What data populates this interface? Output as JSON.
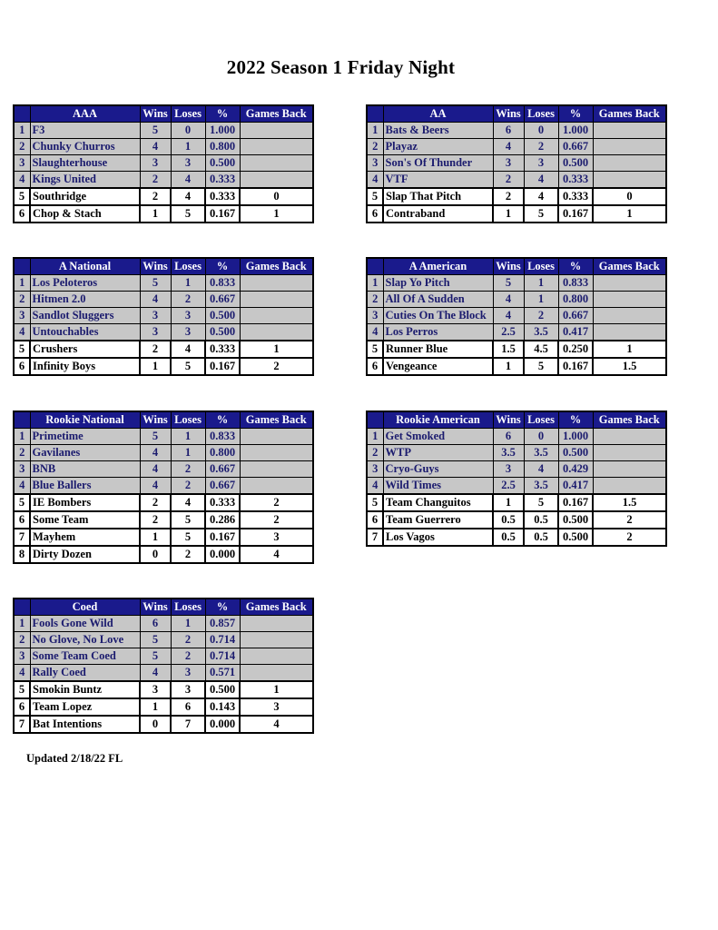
{
  "page": {
    "title": "2022 Season 1 Friday Night",
    "footer": "Updated 2/18/22 FL"
  },
  "headers": {
    "wins": "Wins",
    "loses": "Loses",
    "pct": "%",
    "games_back": "Games Back"
  },
  "colors": {
    "header_bg": "#1A1A8C",
    "header_text": "#FFFFFF",
    "shaded_row_bg": "#C7C7C7",
    "shaded_row_text": "#1B1B6E",
    "strong_row_text": "#000000",
    "border": "#000000"
  },
  "tables": [
    {
      "name": "AAA",
      "rows": [
        {
          "rank": "1",
          "team": "F3",
          "wins": "5",
          "loses": "0",
          "pct": "1.000",
          "gb": "",
          "shaded": true
        },
        {
          "rank": "2",
          "team": "Chunky Churros",
          "wins": "4",
          "loses": "1",
          "pct": "0.800",
          "gb": "",
          "shaded": true
        },
        {
          "rank": "3",
          "team": "Slaughterhouse",
          "wins": "3",
          "loses": "3",
          "pct": "0.500",
          "gb": "",
          "shaded": true
        },
        {
          "rank": "4",
          "team": "Kings United",
          "wins": "2",
          "loses": "4",
          "pct": "0.333",
          "gb": "",
          "shaded": true
        },
        {
          "rank": "5",
          "team": "Southridge",
          "wins": "2",
          "loses": "4",
          "pct": "0.333",
          "gb": "0",
          "shaded": false
        },
        {
          "rank": "6",
          "team": "Chop & Stach",
          "wins": "1",
          "loses": "5",
          "pct": "0.167",
          "gb": "1",
          "shaded": false
        }
      ]
    },
    {
      "name": "AA",
      "rows": [
        {
          "rank": "1",
          "team": "Bats & Beers",
          "wins": "6",
          "loses": "0",
          "pct": "1.000",
          "gb": "",
          "shaded": true
        },
        {
          "rank": "2",
          "team": "Playaz",
          "wins": "4",
          "loses": "2",
          "pct": "0.667",
          "gb": "",
          "shaded": true
        },
        {
          "rank": "3",
          "team": "Son's Of Thunder",
          "wins": "3",
          "loses": "3",
          "pct": "0.500",
          "gb": "",
          "shaded": true
        },
        {
          "rank": "4",
          "team": "VTF",
          "wins": "2",
          "loses": "4",
          "pct": "0.333",
          "gb": "",
          "shaded": true
        },
        {
          "rank": "5",
          "team": "Slap That Pitch",
          "wins": "2",
          "loses": "4",
          "pct": "0.333",
          "gb": "0",
          "shaded": false
        },
        {
          "rank": "6",
          "team": "Contraband",
          "wins": "1",
          "loses": "5",
          "pct": "0.167",
          "gb": "1",
          "shaded": false
        }
      ]
    },
    {
      "name": "A National",
      "rows": [
        {
          "rank": "1",
          "team": "Los Peloteros",
          "wins": "5",
          "loses": "1",
          "pct": "0.833",
          "gb": "",
          "shaded": true
        },
        {
          "rank": "2",
          "team": "Hitmen 2.0",
          "wins": "4",
          "loses": "2",
          "pct": "0.667",
          "gb": "",
          "shaded": true
        },
        {
          "rank": "3",
          "team": "Sandlot Sluggers",
          "wins": "3",
          "loses": "3",
          "pct": "0.500",
          "gb": "",
          "shaded": true
        },
        {
          "rank": "4",
          "team": "Untouchables",
          "wins": "3",
          "loses": "3",
          "pct": "0.500",
          "gb": "",
          "shaded": true
        },
        {
          "rank": "5",
          "team": "Crushers",
          "wins": "2",
          "loses": "4",
          "pct": "0.333",
          "gb": "1",
          "shaded": false
        },
        {
          "rank": "6",
          "team": "Infinity Boys",
          "wins": "1",
          "loses": "5",
          "pct": "0.167",
          "gb": "2",
          "shaded": false
        }
      ]
    },
    {
      "name": "A American",
      "rows": [
        {
          "rank": "1",
          "team": "Slap Yo Pitch",
          "wins": "5",
          "loses": "1",
          "pct": "0.833",
          "gb": "",
          "shaded": true
        },
        {
          "rank": "2",
          "team": "All Of A Sudden",
          "wins": "4",
          "loses": "1",
          "pct": "0.800",
          "gb": "",
          "shaded": true
        },
        {
          "rank": "3",
          "team": "Cuties On The Block",
          "wins": "4",
          "loses": "2",
          "pct": "0.667",
          "gb": "",
          "shaded": true
        },
        {
          "rank": "4",
          "team": "Los Perros",
          "wins": "2.5",
          "loses": "3.5",
          "pct": "0.417",
          "gb": "",
          "shaded": true
        },
        {
          "rank": "5",
          "team": "Runner Blue",
          "wins": "1.5",
          "loses": "4.5",
          "pct": "0.250",
          "gb": "1",
          "shaded": false
        },
        {
          "rank": "6",
          "team": "Vengeance",
          "wins": "1",
          "loses": "5",
          "pct": "0.167",
          "gb": "1.5",
          "shaded": false
        }
      ]
    },
    {
      "name": "Rookie National",
      "rows": [
        {
          "rank": "1",
          "team": "Primetime",
          "wins": "5",
          "loses": "1",
          "pct": "0.833",
          "gb": "",
          "shaded": true
        },
        {
          "rank": "2",
          "team": "Gavilanes",
          "wins": "4",
          "loses": "1",
          "pct": "0.800",
          "gb": "",
          "shaded": true
        },
        {
          "rank": "3",
          "team": "BNB",
          "wins": "4",
          "loses": "2",
          "pct": "0.667",
          "gb": "",
          "shaded": true
        },
        {
          "rank": "4",
          "team": "Blue Ballers",
          "wins": "4",
          "loses": "2",
          "pct": "0.667",
          "gb": "",
          "shaded": true
        },
        {
          "rank": "5",
          "team": "IE Bombers",
          "wins": "2",
          "loses": "4",
          "pct": "0.333",
          "gb": "2",
          "shaded": false
        },
        {
          "rank": "6",
          "team": "Some Team",
          "wins": "2",
          "loses": "5",
          "pct": "0.286",
          "gb": "2",
          "shaded": false
        },
        {
          "rank": "7",
          "team": "Mayhem",
          "wins": "1",
          "loses": "5",
          "pct": "0.167",
          "gb": "3",
          "shaded": false
        },
        {
          "rank": "8",
          "team": "Dirty Dozen",
          "wins": "0",
          "loses": "2",
          "pct": "0.000",
          "gb": "4",
          "shaded": false
        }
      ]
    },
    {
      "name": "Rookie American",
      "rows": [
        {
          "rank": "1",
          "team": "Get Smoked",
          "wins": "6",
          "loses": "0",
          "pct": "1.000",
          "gb": "",
          "shaded": true
        },
        {
          "rank": "2",
          "team": "WTP",
          "wins": "3.5",
          "loses": "3.5",
          "pct": "0.500",
          "gb": "",
          "shaded": true
        },
        {
          "rank": "3",
          "team": "Cryo-Guys",
          "wins": "3",
          "loses": "4",
          "pct": "0.429",
          "gb": "",
          "shaded": true
        },
        {
          "rank": "4",
          "team": "Wild Times",
          "wins": "2.5",
          "loses": "3.5",
          "pct": "0.417",
          "gb": "",
          "shaded": true
        },
        {
          "rank": "5",
          "team": "Team Changuitos",
          "wins": "1",
          "loses": "5",
          "pct": "0.167",
          "gb": "1.5",
          "shaded": false
        },
        {
          "rank": "6",
          "team": "Team Guerrero",
          "wins": "0.5",
          "loses": "0.5",
          "pct": "0.500",
          "gb": "2",
          "shaded": false
        },
        {
          "rank": "7",
          "team": "Los Vagos",
          "wins": "0.5",
          "loses": "0.5",
          "pct": "0.500",
          "gb": "2",
          "shaded": false
        }
      ]
    },
    {
      "name": "Coed",
      "rows": [
        {
          "rank": "1",
          "team": "Fools Gone Wild",
          "wins": "6",
          "loses": "1",
          "pct": "0.857",
          "gb": "",
          "shaded": true
        },
        {
          "rank": "2",
          "team": "No Glove, No Love",
          "wins": "5",
          "loses": "2",
          "pct": "0.714",
          "gb": "",
          "shaded": true
        },
        {
          "rank": "3",
          "team": "Some Team Coed",
          "wins": "5",
          "loses": "2",
          "pct": "0.714",
          "gb": "",
          "shaded": true
        },
        {
          "rank": "4",
          "team": "Rally Coed",
          "wins": "4",
          "loses": "3",
          "pct": "0.571",
          "gb": "",
          "shaded": true
        },
        {
          "rank": "5",
          "team": "Smokin Buntz",
          "wins": "3",
          "loses": "3",
          "pct": "0.500",
          "gb": "1",
          "shaded": false
        },
        {
          "rank": "6",
          "team": "Team Lopez",
          "wins": "1",
          "loses": "6",
          "pct": "0.143",
          "gb": "3",
          "shaded": false
        },
        {
          "rank": "7",
          "team": "Bat Intentions",
          "wins": "0",
          "loses": "7",
          "pct": "0.000",
          "gb": "4",
          "shaded": false
        }
      ]
    }
  ]
}
